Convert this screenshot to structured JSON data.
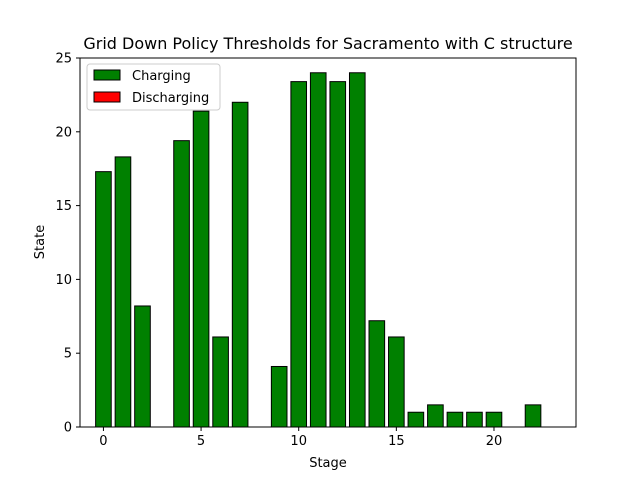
{
  "chart_data": {
    "type": "bar",
    "title": "Grid Down Policy Thresholds for Sacramento with C structure",
    "xlabel": "Stage",
    "ylabel": "State",
    "xlim": [
      -1.2,
      24.2
    ],
    "ylim": [
      0,
      25
    ],
    "xticks": [
      0,
      5,
      10,
      15,
      20
    ],
    "yticks": [
      0,
      5,
      10,
      15,
      20,
      25
    ],
    "grid": false,
    "legend_position": "upper-left",
    "x": [
      0,
      1,
      2,
      3,
      4,
      5,
      6,
      7,
      8,
      9,
      10,
      11,
      12,
      13,
      14,
      15,
      16,
      17,
      18,
      19,
      20,
      21,
      22,
      23
    ],
    "series": [
      {
        "name": "Charging",
        "color": "#008000",
        "values": [
          17.3,
          18.3,
          8.2,
          0,
          19.4,
          21.4,
          6.1,
          22.0,
          0,
          4.1,
          23.4,
          24.0,
          23.4,
          24.0,
          7.2,
          6.1,
          1.0,
          1.5,
          1.0,
          1.0,
          1.0,
          0,
          1.5,
          0
        ]
      },
      {
        "name": "Discharging",
        "color": "#ff0000",
        "values": [
          0,
          0,
          0,
          0,
          0,
          0,
          0,
          0,
          0,
          0,
          0,
          0,
          0,
          0,
          0,
          0,
          0,
          0,
          0,
          0,
          0,
          0,
          0,
          0
        ]
      }
    ]
  }
}
